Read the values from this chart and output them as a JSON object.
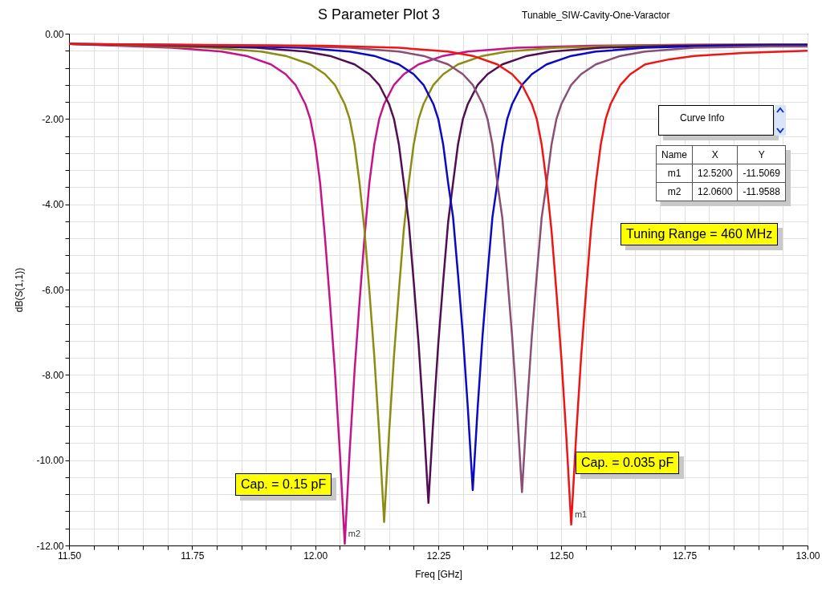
{
  "chart_data": {
    "type": "line",
    "title": "S Parameter Plot 3",
    "subtitle": "Tunable_SIW-Cavity-One-Varactor",
    "xlabel": "Freq [GHz]",
    "ylabel": "dB(S(1,1))",
    "xlim": [
      11.5,
      13.0
    ],
    "ylim": [
      -12,
      0
    ],
    "grid": true,
    "xticks": [
      {
        "value": 11.5,
        "label": "11.50"
      },
      {
        "value": 11.55,
        "label": null
      },
      {
        "value": 11.6,
        "label": null
      },
      {
        "value": 11.65,
        "label": null
      },
      {
        "value": 11.7,
        "label": null
      },
      {
        "value": 11.75,
        "label": "11.75"
      },
      {
        "value": 11.8,
        "label": null
      },
      {
        "value": 11.85,
        "label": null
      },
      {
        "value": 11.9,
        "label": null
      },
      {
        "value": 11.95,
        "label": null
      },
      {
        "value": 12.0,
        "label": "12.00"
      },
      {
        "value": 12.05,
        "label": null
      },
      {
        "value": 12.1,
        "label": null
      },
      {
        "value": 12.15,
        "label": null
      },
      {
        "value": 12.2,
        "label": null
      },
      {
        "value": 12.25,
        "label": "12.25"
      },
      {
        "value": 12.3,
        "label": null
      },
      {
        "value": 12.35,
        "label": null
      },
      {
        "value": 12.4,
        "label": null
      },
      {
        "value": 12.45,
        "label": null
      },
      {
        "value": 12.5,
        "label": "12.50"
      },
      {
        "value": 12.55,
        "label": null
      },
      {
        "value": 12.6,
        "label": null
      },
      {
        "value": 12.65,
        "label": null
      },
      {
        "value": 12.7,
        "label": null
      },
      {
        "value": 12.75,
        "label": "12.75"
      },
      {
        "value": 12.8,
        "label": null
      },
      {
        "value": 12.85,
        "label": null
      },
      {
        "value": 12.9,
        "label": null
      },
      {
        "value": 12.95,
        "label": null
      },
      {
        "value": 13.0,
        "label": "13.00"
      }
    ],
    "yticks": [
      {
        "value": 0,
        "label": "0.00"
      },
      {
        "value": -0.4,
        "label": null
      },
      {
        "value": -0.8,
        "label": null
      },
      {
        "value": -1.2,
        "label": null
      },
      {
        "value": -1.6,
        "label": null
      },
      {
        "value": -2,
        "label": "-2.00"
      },
      {
        "value": -2.4,
        "label": null
      },
      {
        "value": -2.8,
        "label": null
      },
      {
        "value": -3.2,
        "label": null
      },
      {
        "value": -3.6,
        "label": null
      },
      {
        "value": -4,
        "label": "-4.00"
      },
      {
        "value": -4.4,
        "label": null
      },
      {
        "value": -4.8,
        "label": null
      },
      {
        "value": -5.2,
        "label": null
      },
      {
        "value": -5.6,
        "label": null
      },
      {
        "value": -6,
        "label": "-6.00"
      },
      {
        "value": -6.4,
        "label": null
      },
      {
        "value": -6.8,
        "label": null
      },
      {
        "value": -7.2,
        "label": null
      },
      {
        "value": -7.6,
        "label": null
      },
      {
        "value": -8,
        "label": "-8.00"
      },
      {
        "value": -8.4,
        "label": null
      },
      {
        "value": -8.8,
        "label": null
      },
      {
        "value": -9.2,
        "label": null
      },
      {
        "value": -9.6,
        "label": null
      },
      {
        "value": -10,
        "label": "-10.00"
      },
      {
        "value": -10.4,
        "label": null
      },
      {
        "value": -10.8,
        "label": null
      },
      {
        "value": -11.2,
        "label": null
      },
      {
        "value": -11.6,
        "label": null
      },
      {
        "value": -12,
        "label": "-12.00"
      }
    ],
    "series": [
      {
        "color": "#c4148a",
        "x": [
          11.5,
          11.71,
          11.81,
          11.86,
          11.91,
          11.94,
          11.96,
          11.98,
          11.99,
          12.0,
          12.01,
          12.02,
          12.03,
          12.04,
          12.05,
          12.06,
          12.07,
          12.08,
          12.09,
          12.1,
          12.11,
          12.12,
          12.13,
          12.14,
          12.16,
          12.18,
          12.21,
          12.26,
          12.31,
          12.41,
          12.56,
          12.76,
          13.0
        ],
        "values": [
          -0.24,
          -0.33,
          -0.42,
          -0.52,
          -0.72,
          -0.95,
          -1.2,
          -1.65,
          -2.0,
          -2.6,
          -3.5,
          -4.8,
          -6.3,
          -7.9,
          -9.8,
          -11.96,
          -9.8,
          -7.9,
          -6.3,
          -4.8,
          -3.5,
          -2.6,
          -2.0,
          -1.65,
          -1.2,
          -0.95,
          -0.72,
          -0.52,
          -0.42,
          -0.33,
          -0.28,
          -0.26,
          -0.25
        ]
      },
      {
        "color": "#8c8c12",
        "x": [
          11.5,
          11.64,
          11.79,
          11.89,
          11.94,
          11.99,
          12.02,
          12.04,
          12.06,
          12.07,
          12.08,
          12.09,
          12.1,
          12.11,
          12.12,
          12.13,
          12.14,
          12.15,
          12.16,
          12.17,
          12.18,
          12.19,
          12.2,
          12.21,
          12.22,
          12.24,
          12.26,
          12.29,
          12.34,
          12.39,
          12.49,
          12.64,
          12.84,
          13.0
        ],
        "values": [
          -0.24,
          -0.28,
          -0.33,
          -0.42,
          -0.52,
          -0.72,
          -0.95,
          -1.2,
          -1.65,
          -2.0,
          -2.6,
          -3.5,
          -4.59,
          -6.03,
          -7.56,
          -9.38,
          -11.45,
          -9.38,
          -7.56,
          -6.03,
          -4.59,
          -3.5,
          -2.6,
          -2.0,
          -1.65,
          -1.2,
          -0.95,
          -0.72,
          -0.52,
          -0.42,
          -0.33,
          -0.28,
          -0.26,
          -0.25
        ]
      },
      {
        "color": "#520e52",
        "x": [
          11.5,
          11.73,
          11.88,
          11.98,
          12.03,
          12.08,
          12.11,
          12.13,
          12.15,
          12.16,
          12.17,
          12.18,
          12.19,
          12.2,
          12.21,
          12.22,
          12.23,
          12.24,
          12.25,
          12.26,
          12.27,
          12.28,
          12.29,
          12.3,
          12.31,
          12.33,
          12.35,
          12.38,
          12.43,
          12.48,
          12.58,
          12.73,
          12.93,
          13.0
        ],
        "values": [
          -0.24,
          -0.28,
          -0.33,
          -0.42,
          -0.52,
          -0.72,
          -0.95,
          -1.2,
          -1.65,
          -2.0,
          -2.6,
          -3.5,
          -4.42,
          -5.8,
          -7.27,
          -9.02,
          -11.0,
          -9.02,
          -7.27,
          -5.8,
          -4.42,
          -3.5,
          -2.6,
          -2.0,
          -1.65,
          -1.2,
          -0.95,
          -0.72,
          -0.52,
          -0.42,
          -0.33,
          -0.28,
          -0.26,
          -0.26
        ]
      },
      {
        "color": "#0a0ac2",
        "x": [
          11.5,
          11.82,
          11.97,
          12.07,
          12.12,
          12.17,
          12.2,
          12.22,
          12.24,
          12.25,
          12.26,
          12.27,
          12.28,
          12.29,
          12.3,
          12.31,
          12.32,
          12.33,
          12.34,
          12.35,
          12.36,
          12.37,
          12.38,
          12.39,
          12.4,
          12.42,
          12.44,
          12.47,
          12.52,
          12.57,
          12.67,
          12.82,
          13.0
        ],
        "values": [
          -0.24,
          -0.28,
          -0.33,
          -0.42,
          -0.52,
          -0.72,
          -0.95,
          -1.2,
          -1.65,
          -2.0,
          -2.6,
          -3.5,
          -4.3,
          -5.64,
          -7.07,
          -8.77,
          -10.7,
          -8.77,
          -7.07,
          -5.64,
          -4.3,
          -3.5,
          -2.6,
          -2.0,
          -1.65,
          -1.2,
          -0.95,
          -0.72,
          -0.52,
          -0.42,
          -0.33,
          -0.28,
          -0.27
        ]
      },
      {
        "color": "#8a4f72",
        "x": [
          11.5,
          11.92,
          12.07,
          12.17,
          12.22,
          12.27,
          12.3,
          12.32,
          12.34,
          12.35,
          12.36,
          12.37,
          12.38,
          12.39,
          12.4,
          12.41,
          12.42,
          12.43,
          12.44,
          12.45,
          12.46,
          12.47,
          12.48,
          12.49,
          12.5,
          12.52,
          12.54,
          12.57,
          12.62,
          12.67,
          12.77,
          12.92,
          13.0
        ],
        "values": [
          -0.24,
          -0.28,
          -0.33,
          -0.42,
          -0.52,
          -0.72,
          -0.95,
          -1.2,
          -1.65,
          -2.0,
          -2.6,
          -3.5,
          -4.31,
          -5.66,
          -7.1,
          -8.81,
          -10.75,
          -8.81,
          -7.1,
          -5.66,
          -4.31,
          -3.5,
          -2.6,
          -2.0,
          -1.65,
          -1.2,
          -0.95,
          -0.72,
          -0.52,
          -0.42,
          -0.33,
          -0.3,
          -0.3
        ]
      },
      {
        "color": "#ee1515",
        "x": [
          11.5,
          12.02,
          12.17,
          12.27,
          12.32,
          12.37,
          12.4,
          12.42,
          12.44,
          12.45,
          12.46,
          12.47,
          12.48,
          12.49,
          12.5,
          12.51,
          12.52,
          12.53,
          12.54,
          12.55,
          12.56,
          12.57,
          12.58,
          12.59,
          12.6,
          12.62,
          12.64,
          12.67,
          12.72,
          12.77,
          12.87,
          13.0
        ],
        "values": [
          -0.24,
          -0.28,
          -0.33,
          -0.42,
          -0.52,
          -0.72,
          -0.95,
          -1.2,
          -1.65,
          -2.0,
          -2.6,
          -3.5,
          -4.62,
          -6.06,
          -7.6,
          -9.43,
          -11.51,
          -9.43,
          -7.6,
          -6.06,
          -4.62,
          -3.5,
          -2.6,
          -2.0,
          -1.65,
          -1.2,
          -0.95,
          -0.72,
          -0.6,
          -0.52,
          -0.45,
          -0.4
        ]
      }
    ],
    "annotations": [
      {
        "text": "m1",
        "x": 12.52,
        "y": -11.5069
      },
      {
        "text": "m2",
        "x": 12.06,
        "y": -11.9588
      },
      "Cap. = 0.15 pF",
      "Cap. = 0.035 pF",
      "Tuning Range = 460 MHz",
      "Curve Info",
      "Name",
      "X",
      "Y",
      "m1",
      "12.5200",
      "-11.5069",
      "m2",
      "12.0600",
      "-11.9588"
    ]
  }
}
